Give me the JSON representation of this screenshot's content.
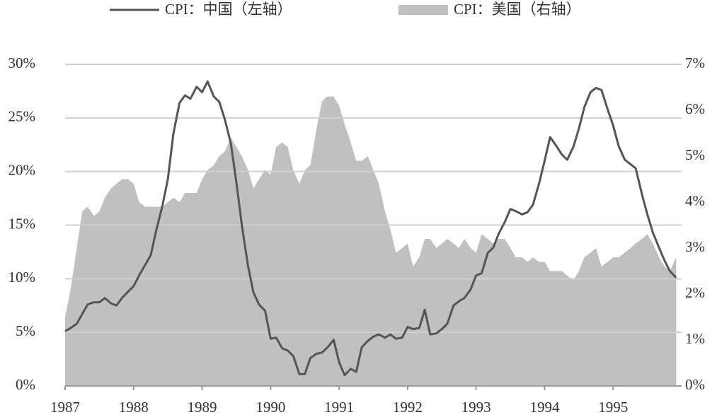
{
  "chart_data": {
    "type": "line",
    "x": [
      1987,
      1987.08,
      1987.17,
      1987.25,
      1987.33,
      1987.42,
      1987.5,
      1987.58,
      1987.67,
      1987.75,
      1987.83,
      1987.92,
      1988,
      1988.08,
      1988.17,
      1988.25,
      1988.33,
      1988.42,
      1988.5,
      1988.58,
      1988.67,
      1988.75,
      1988.83,
      1988.92,
      1989,
      1989.08,
      1989.17,
      1989.25,
      1989.33,
      1989.42,
      1989.5,
      1989.58,
      1989.67,
      1989.75,
      1989.83,
      1989.92,
      1990,
      1990.08,
      1990.17,
      1990.25,
      1990.33,
      1990.42,
      1990.5,
      1990.58,
      1990.67,
      1990.75,
      1990.83,
      1990.92,
      1991,
      1991.08,
      1991.17,
      1991.25,
      1991.33,
      1991.42,
      1991.5,
      1991.58,
      1991.67,
      1991.75,
      1991.83,
      1991.92,
      1992,
      1992.08,
      1992.17,
      1992.25,
      1992.33,
      1992.42,
      1992.5,
      1992.58,
      1992.67,
      1992.75,
      1992.83,
      1992.92,
      1993,
      1993.08,
      1993.17,
      1993.25,
      1993.33,
      1993.42,
      1993.5,
      1993.58,
      1993.67,
      1993.75,
      1993.83,
      1993.92,
      1994,
      1994.08,
      1994.17,
      1994.25,
      1994.33,
      1994.42,
      1994.5,
      1994.58,
      1994.67,
      1994.75,
      1994.83,
      1994.92,
      1995,
      1995.08,
      1995.17,
      1995.25,
      1995.33,
      1995.42,
      1995.5,
      1995.58,
      1995.67,
      1995.75,
      1995.83,
      1995.92
    ],
    "series": [
      {
        "name": "CPI：中国（左轴）",
        "type": "line",
        "color": "#555555",
        "values": [
          5.1,
          5.4,
          5.8,
          6.7,
          7.6,
          7.8,
          7.8,
          8.2,
          7.7,
          7.5,
          8.2,
          8.8,
          9.3,
          10.3,
          11.3,
          12.2,
          14.5,
          16.8,
          19.3,
          23.5,
          26.4,
          27.1,
          26.8,
          27.9,
          27.4,
          28.4,
          27.0,
          26.5,
          24.9,
          22.6,
          19.0,
          15.0,
          11.2,
          8.7,
          7.6,
          7.0,
          4.4,
          4.5,
          3.5,
          3.3,
          2.8,
          1.1,
          1.1,
          2.6,
          3.0,
          3.1,
          3.6,
          4.3,
          2.2,
          1.0,
          1.6,
          1.3,
          3.6,
          4.2,
          4.6,
          4.8,
          4.5,
          4.8,
          4.4,
          4.5,
          5.5,
          5.3,
          5.4,
          7.1,
          4.8,
          4.9,
          5.3,
          5.8,
          7.5,
          7.9,
          8.2,
          9.0,
          10.3,
          10.5,
          12.4,
          12.9,
          14.2,
          15.3,
          16.5,
          16.3,
          16.0,
          16.2,
          16.9,
          18.9,
          21.0,
          23.2,
          22.4,
          21.6,
          21.1,
          22.3,
          24.0,
          26.0,
          27.4,
          27.8,
          27.6,
          25.8,
          24.3,
          22.4,
          21.1,
          20.7,
          20.3,
          17.9,
          16.0,
          14.3,
          12.9,
          11.7,
          10.7,
          10.1
        ]
      },
      {
        "name": "CPI：美国（右轴）",
        "type": "area",
        "axis": "y2",
        "color": "#c0c0c0",
        "values": [
          1.5,
          2.1,
          3.0,
          3.8,
          3.9,
          3.7,
          3.8,
          4.1,
          4.3,
          4.4,
          4.5,
          4.5,
          4.4,
          4.0,
          3.9,
          3.9,
          3.9,
          3.9,
          4.0,
          4.1,
          4.0,
          4.2,
          4.2,
          4.2,
          4.5,
          4.7,
          4.8,
          5.0,
          5.1,
          5.4,
          5.2,
          5.0,
          4.7,
          4.3,
          4.5,
          4.7,
          4.6,
          5.2,
          5.3,
          5.2,
          4.7,
          4.4,
          4.7,
          4.8,
          5.6,
          6.2,
          6.3,
          6.3,
          6.1,
          5.7,
          5.3,
          4.9,
          4.9,
          5.0,
          4.7,
          4.4,
          3.8,
          3.4,
          2.9,
          3.0,
          3.1,
          2.6,
          2.8,
          3.2,
          3.2,
          3.0,
          3.1,
          3.2,
          3.1,
          3.0,
          3.2,
          3.0,
          2.9,
          3.3,
          3.2,
          3.1,
          3.2,
          3.2,
          3.0,
          2.8,
          2.8,
          2.7,
          2.8,
          2.7,
          2.7,
          2.5,
          2.5,
          2.5,
          2.4,
          2.3,
          2.5,
          2.8,
          2.9,
          3.0,
          2.6,
          2.7,
          2.8,
          2.8,
          2.9,
          3.0,
          3.1,
          3.2,
          3.3,
          3.1,
          2.8,
          2.6,
          2.5,
          2.8
        ]
      }
    ],
    "xlim": [
      1987,
      1996
    ],
    "xticks": [
      1987,
      1988,
      1989,
      1990,
      1991,
      1992,
      1993,
      1994,
      1995
    ],
    "ylim": [
      0,
      30
    ],
    "yticks": [
      {
        "value": 0,
        "label": "0%"
      },
      {
        "value": 5,
        "label": "5%"
      },
      {
        "value": 10,
        "label": "10%"
      },
      {
        "value": 15,
        "label": "15%"
      },
      {
        "value": 20,
        "label": "20%"
      },
      {
        "value": 25,
        "label": "25%"
      },
      {
        "value": 30,
        "label": "30%"
      }
    ],
    "y2lim": [
      0,
      7
    ],
    "y2ticks": [
      {
        "value": 0,
        "label": "0%"
      },
      {
        "value": 1,
        "label": "1%"
      },
      {
        "value": 2,
        "label": "2%"
      },
      {
        "value": 3,
        "label": "3%"
      },
      {
        "value": 4,
        "label": "4%"
      },
      {
        "value": 5,
        "label": "5%"
      },
      {
        "value": 6,
        "label": "6%"
      },
      {
        "value": 7,
        "label": "7%"
      }
    ],
    "grid": true,
    "legend": "top"
  }
}
